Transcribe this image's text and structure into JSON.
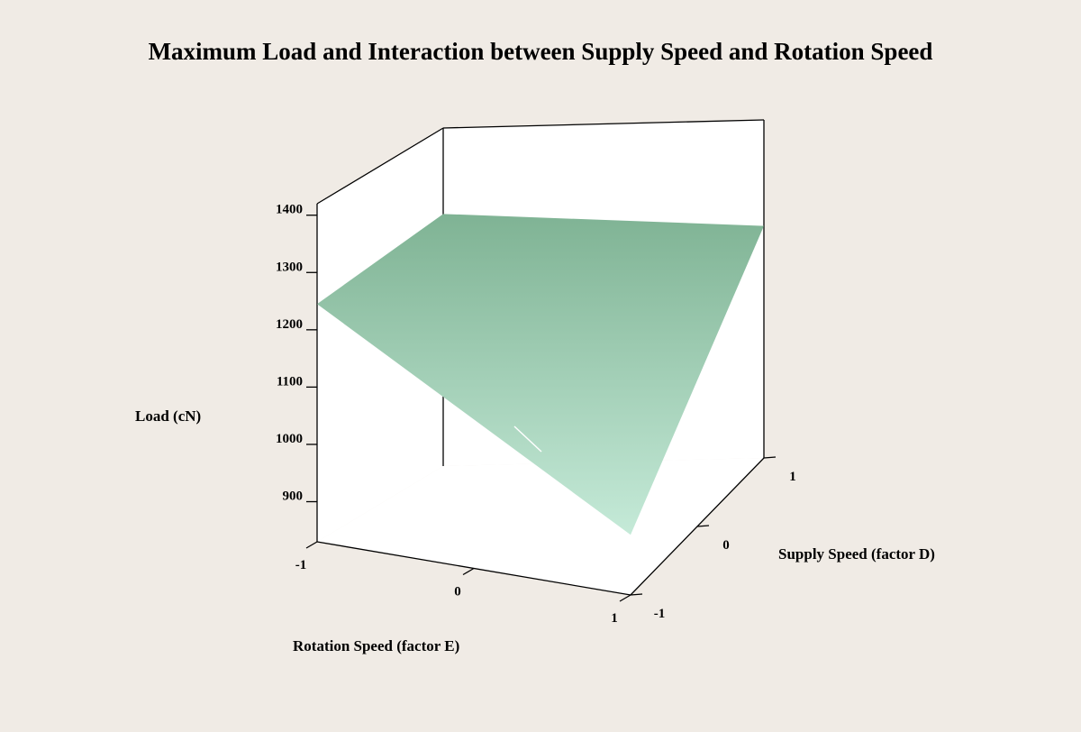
{
  "chart_data": {
    "type": "surface",
    "title": "Maximum Load and Interaction between Supply Speed and Rotation Speed",
    "zlabel": "Load (cN)",
    "xlabel": "Rotation Speed (factor E)",
    "ylabel": "Supply Speed (factor D)",
    "x_ticks": [
      "-1",
      "0",
      "1"
    ],
    "y_ticks": [
      "-1",
      "0",
      "1"
    ],
    "z_ticks": [
      "900",
      "1000",
      "1100",
      "1200",
      "1300",
      "1400"
    ],
    "xlim": [
      -1,
      1
    ],
    "ylim": [
      -1,
      1
    ],
    "zlim": [
      830,
      1420
    ],
    "surface_color_high": "#7fb394",
    "surface_color_low": "#c5ead8",
    "surface_corners": [
      {
        "x": -1,
        "y": -1,
        "z": 1245
      },
      {
        "x": -1,
        "y": 1,
        "z": 1270
      },
      {
        "x": 1,
        "y": 1,
        "z": 1235
      },
      {
        "x": 1,
        "y": -1,
        "z": 935
      }
    ]
  }
}
